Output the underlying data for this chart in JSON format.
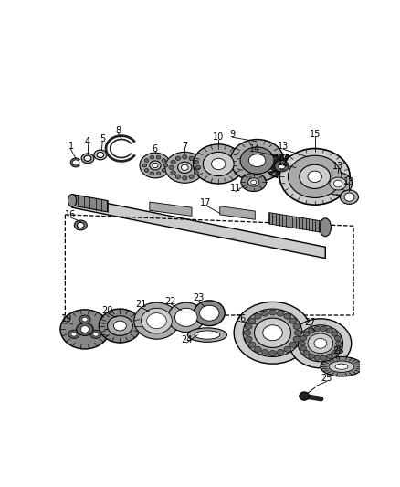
{
  "bg_color": "#ffffff",
  "lc": "#000000",
  "gray1": "#cccccc",
  "gray2": "#aaaaaa",
  "gray3": "#888888",
  "gray4": "#666666",
  "gray5": "#444444",
  "dark": "#222222"
}
